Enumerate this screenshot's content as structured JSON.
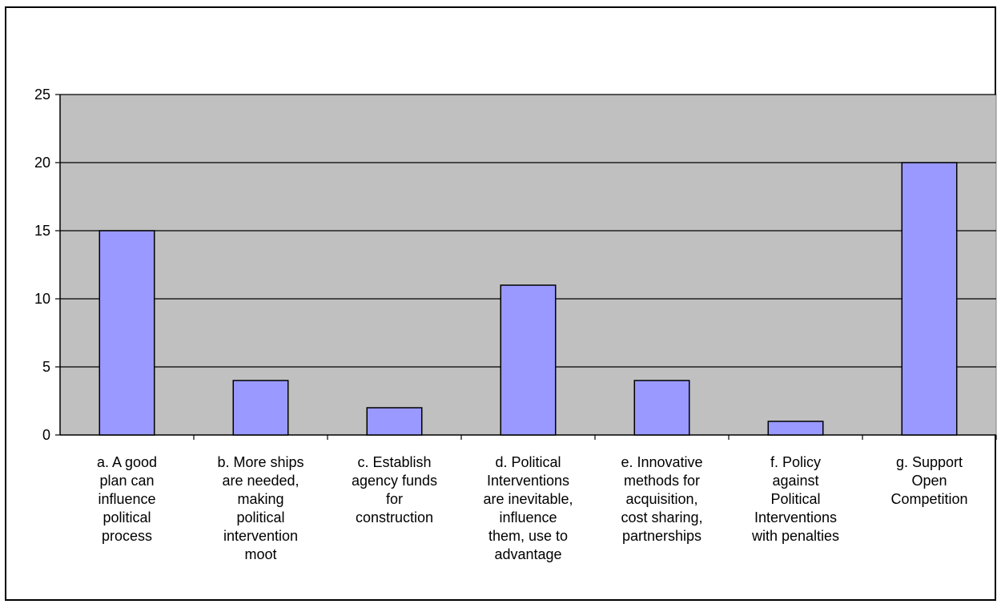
{
  "chart_data": {
    "type": "bar",
    "categories": [
      [
        "a. A good",
        "plan can",
        "influence",
        "political",
        "process"
      ],
      [
        "b. More ships",
        "are needed,",
        "making",
        "political",
        "intervention",
        "moot"
      ],
      [
        "c. Establish",
        "agency funds",
        "for",
        "construction"
      ],
      [
        "d. Political",
        "Interventions",
        "are inevitable,",
        "influence",
        "them, use to",
        "advantage"
      ],
      [
        "e. Innovative",
        "methods for",
        "acquisition,",
        "cost sharing,",
        "partnerships"
      ],
      [
        "f.  Policy",
        "against",
        "Political",
        "Interventions",
        "with penalties"
      ],
      [
        "g. Support",
        "Open",
        "Competition"
      ]
    ],
    "values": [
      15,
      4,
      2,
      11,
      4,
      1,
      20
    ],
    "ylim": [
      0,
      25
    ],
    "yticks": [
      0,
      5,
      10,
      15,
      20,
      25
    ],
    "title": "",
    "xlabel": "",
    "ylabel": "",
    "grid": true,
    "colors": {
      "bar_fill": "#9999ff",
      "bar_stroke": "#000000",
      "plot_bg": "#c0c0c0",
      "grid": "#000000"
    }
  }
}
